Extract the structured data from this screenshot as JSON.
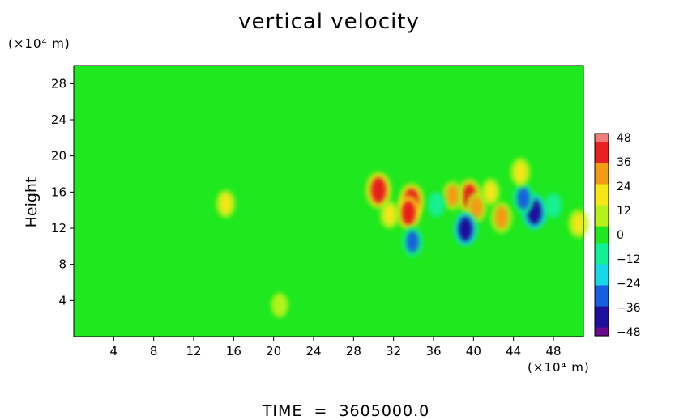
{
  "chart_data": {
    "type": "heatmap",
    "title": "vertical velocity",
    "ylabel": "Height",
    "y_unit": "(×10⁴ m)",
    "x_unit": "(×10⁴ m)",
    "x_ticks": [
      "4",
      "8",
      "12",
      "16",
      "20",
      "24",
      "28",
      "32",
      "36",
      "40",
      "44",
      "48"
    ],
    "y_ticks": [
      "4",
      "8",
      "12",
      "16",
      "20",
      "24",
      "28"
    ],
    "xlim": [
      0,
      51
    ],
    "ylim": [
      0,
      30
    ],
    "colorbar": {
      "ticks": [
        "48",
        "36",
        "24",
        "12",
        "0",
        "−12",
        "−24",
        "−36",
        "−48"
      ],
      "range": [
        -48,
        48
      ],
      "colors": [
        "#6b0a8c",
        "#1f0f9e",
        "#1560e0",
        "#19d7ea",
        "#12f094",
        "#1ee81e",
        "#b6f21a",
        "#f5e614",
        "#f59a14",
        "#ea1f1f",
        "#f07b7b"
      ]
    },
    "background_value": 4,
    "features": [
      {
        "x": 30.5,
        "y": 16.2,
        "value": 42
      },
      {
        "x": 33.8,
        "y": 15.0,
        "value": 40
      },
      {
        "x": 33.5,
        "y": 13.7,
        "value": 36
      },
      {
        "x": 39.6,
        "y": 15.5,
        "value": 38
      },
      {
        "x": 40.3,
        "y": 14.3,
        "value": 26
      },
      {
        "x": 37.9,
        "y": 15.6,
        "value": 24
      },
      {
        "x": 42.8,
        "y": 13.2,
        "value": 30
      },
      {
        "x": 46.1,
        "y": 13.8,
        "value": -40
      },
      {
        "x": 45.0,
        "y": 15.3,
        "value": -28
      },
      {
        "x": 39.2,
        "y": 11.9,
        "value": -36
      },
      {
        "x": 33.9,
        "y": 10.5,
        "value": -26
      },
      {
        "x": 44.7,
        "y": 18.2,
        "value": 22
      },
      {
        "x": 31.6,
        "y": 13.5,
        "value": 20
      },
      {
        "x": 41.7,
        "y": 16.0,
        "value": 18
      },
      {
        "x": 15.2,
        "y": 14.7,
        "value": 20
      },
      {
        "x": 36.3,
        "y": 14.6,
        "value": -14
      },
      {
        "x": 48.0,
        "y": 14.5,
        "value": -14
      },
      {
        "x": 50.5,
        "y": 12.5,
        "value": 22
      },
      {
        "x": 20.6,
        "y": 3.5,
        "value": 12
      }
    ],
    "time_label": "TIME",
    "time_value": "3605000.0"
  }
}
